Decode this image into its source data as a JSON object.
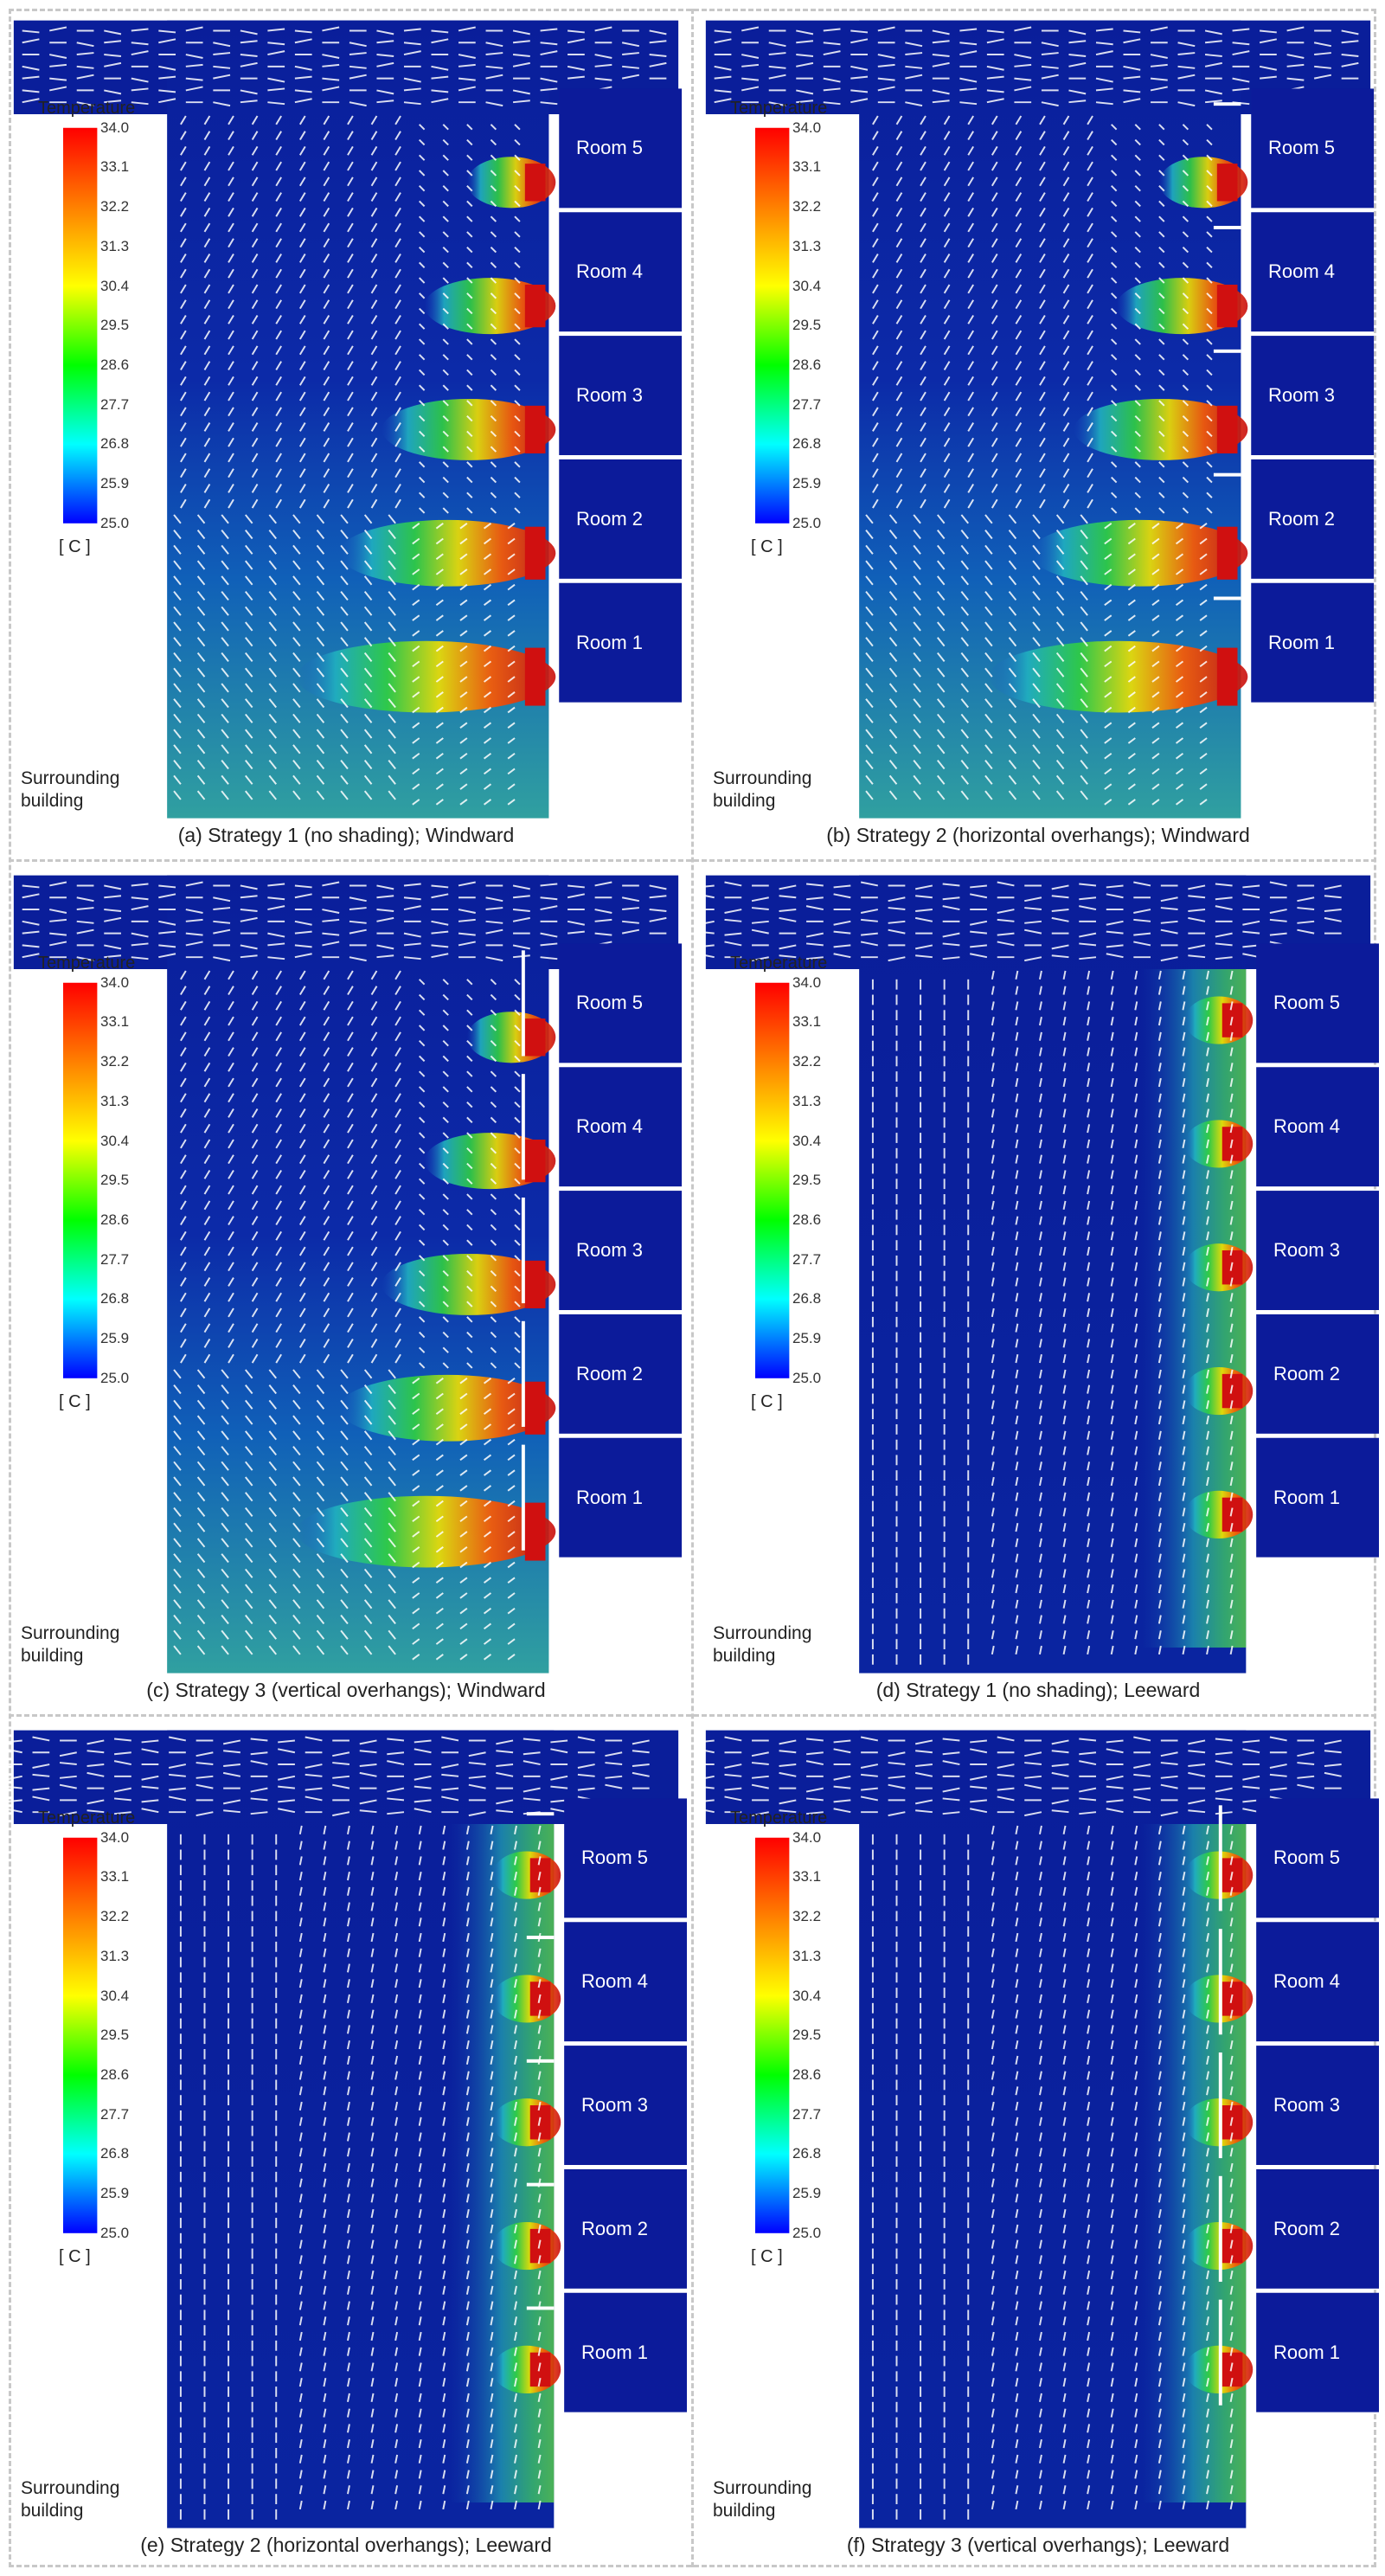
{
  "colorbar": {
    "title": "Temperature",
    "unit": "[ C ]",
    "ticks": [
      "34.0",
      "33.1",
      "32.2",
      "31.3",
      "30.4",
      "29.5",
      "28.6",
      "27.7",
      "26.8",
      "25.9",
      "25.0"
    ],
    "colors": [
      "#ff0000",
      "#ff8000",
      "#ffff00",
      "#00ff00",
      "#00ffff",
      "#0000ff"
    ]
  },
  "room_labels": [
    "Room 5",
    "Room 4",
    "Room 3",
    "Room 2",
    "Room 1"
  ],
  "surrounding_label": "Surrounding building",
  "colors": {
    "domain_blue": "#0a1e9a",
    "room_blue": "#0c1b9a",
    "hot": "#d01010",
    "vector": "#ffffff"
  },
  "panels": [
    {
      "id": "a",
      "caption": "(a) Strategy 1 (no shading); Windward",
      "side": "windward",
      "shading": "none"
    },
    {
      "id": "b",
      "caption": "(b) Strategy 2 (horizontal overhangs); Windward",
      "side": "windward",
      "shading": "horizontal"
    },
    {
      "id": "c",
      "caption": "(c) Strategy 3 (vertical overhangs); Windward",
      "side": "windward",
      "shading": "vertical"
    },
    {
      "id": "d",
      "caption": "(d) Strategy 1 (no shading); Leeward",
      "side": "leeward",
      "shading": "none"
    },
    {
      "id": "e",
      "caption": "(e) Strategy 2 (horizontal overhangs); Leeward",
      "side": "leeward",
      "shading": "horizontal"
    },
    {
      "id": "f",
      "caption": "(f) Strategy 3 (vertical overhangs); Leeward",
      "side": "leeward",
      "shading": "vertical"
    }
  ]
}
